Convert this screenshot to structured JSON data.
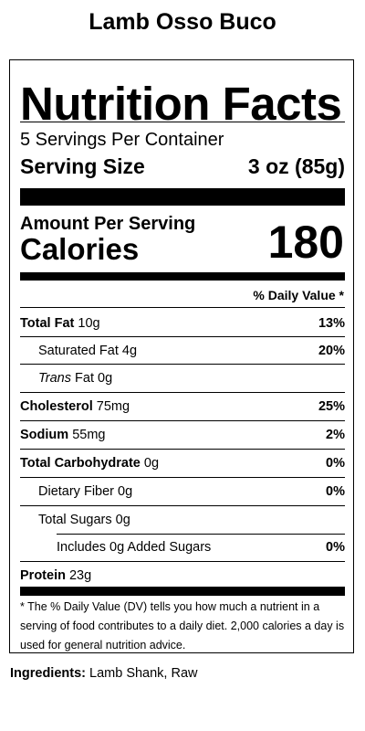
{
  "product": {
    "title": "Lamb Osso Buco"
  },
  "label": {
    "title": "Nutrition Facts",
    "servings_per_container": "5 Servings Per Container",
    "serving_size_label": "Serving Size",
    "serving_size_value": "3 oz (85g)",
    "amount_per_serving": "Amount Per Serving",
    "calories_label": "Calories",
    "calories_value": "180",
    "daily_value_header": "% Daily Value *",
    "nutrients": {
      "total_fat": {
        "name": "Total Fat",
        "amount": "10g",
        "dv": "13%"
      },
      "saturated_fat": {
        "name": "Saturated Fat",
        "amount": "4g",
        "dv": "20%"
      },
      "trans_fat": {
        "name_italic": "Trans",
        "name": "Fat",
        "amount": "0g"
      },
      "cholesterol": {
        "name": "Cholesterol",
        "amount": "75mg",
        "dv": "25%"
      },
      "sodium": {
        "name": "Sodium",
        "amount": "55mg",
        "dv": "2%"
      },
      "total_carbohydrate": {
        "name": "Total Carbohydrate",
        "amount": "0g",
        "dv": "0%"
      },
      "dietary_fiber": {
        "name": "Dietary Fiber",
        "amount": "0g",
        "dv": "0%"
      },
      "total_sugars": {
        "name": "Total Sugars",
        "amount": "0g"
      },
      "added_sugars": {
        "name": "Includes 0g Added Sugars",
        "dv": "0%"
      },
      "protein": {
        "name": "Protein",
        "amount": "23g"
      }
    },
    "footnote": "* The % Daily Value (DV) tells you how much a nutrient in a serving of food contributes to a daily diet. 2,000 calories a day is used for general nutrition advice."
  },
  "ingredients": {
    "label": "Ingredients:",
    "value": "Lamb Shank, Raw"
  }
}
